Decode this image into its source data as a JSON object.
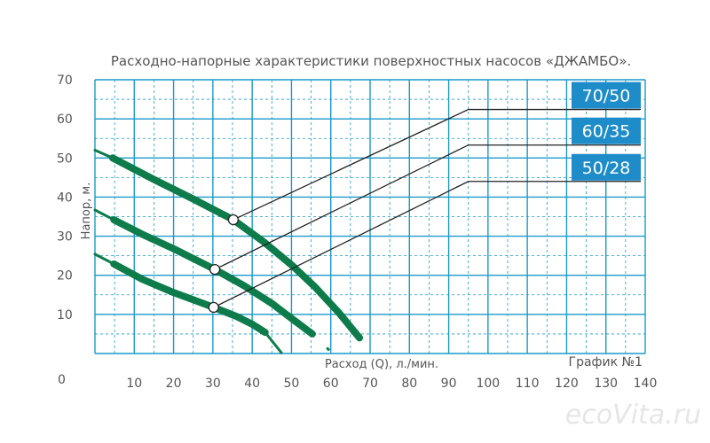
{
  "chart_data": {
    "type": "line",
    "title": "Расходно-напорные характеристики поверхностных насосов «ДЖАМБО».",
    "xlabel": "Расход (Q), л./мин.",
    "ylabel": "Напор, м.",
    "caption": "График №1",
    "xlim": [
      0,
      140
    ],
    "ylim": [
      0,
      70
    ],
    "xticks": [
      10,
      20,
      30,
      40,
      50,
      60,
      70,
      80,
      90,
      100,
      110,
      120,
      130,
      140
    ],
    "yticks": [
      10,
      20,
      30,
      40,
      50,
      60,
      70
    ],
    "origin_label": "0",
    "grid": true,
    "series": [
      {
        "name": "70/50",
        "thin": [
          [
            0,
            52
          ],
          [
            4.5,
            50
          ]
        ],
        "values": [
          [
            4.5,
            50
          ],
          [
            15,
            44.5
          ],
          [
            25,
            39.5
          ],
          [
            35.2,
            34.2
          ],
          [
            43,
            28.5
          ],
          [
            50.3,
            22.4
          ],
          [
            56,
            17
          ],
          [
            62,
            10.5
          ],
          [
            67.3,
            4
          ]
        ],
        "marker": [
          35.2,
          34.2
        ],
        "leader": [
          95,
          62.4
        ]
      },
      {
        "name": "60/35",
        "thin": [
          [
            0,
            36.7
          ],
          [
            4.8,
            34.2
          ]
        ],
        "values": [
          [
            4.8,
            34.2
          ],
          [
            12,
            30.5
          ],
          [
            20,
            26.8
          ],
          [
            30.5,
            21.5
          ],
          [
            38,
            17.3
          ],
          [
            45,
            12.8
          ],
          [
            50,
            9
          ],
          [
            55.3,
            5
          ]
        ],
        "marker": [
          30.5,
          21.5
        ],
        "leader": [
          95,
          53.3
        ]
      },
      {
        "name": "50/28",
        "thin": [
          [
            0,
            25.4
          ],
          [
            4.8,
            22.9
          ]
        ],
        "values": [
          [
            4.8,
            22.9
          ],
          [
            12,
            19
          ],
          [
            20,
            15.6
          ],
          [
            30.2,
            11.8
          ],
          [
            36,
            9.5
          ],
          [
            40,
            7.5
          ],
          [
            43.3,
            5.4
          ]
        ],
        "tail": [
          [
            43.3,
            5.4
          ],
          [
            47.6,
            0
          ]
        ],
        "extra": [
          [
            59,
            1.5
          ],
          [
            59.6,
            0.8
          ]
        ],
        "marker": [
          30.2,
          11.8
        ],
        "leader": [
          95,
          44
        ]
      }
    ],
    "colors": {
      "curve": "#0e7c4a",
      "grid": "#1a9ac9",
      "label_box": "#1e8cc8",
      "leader": "#222222"
    }
  },
  "watermark": "ecoVita.ru"
}
